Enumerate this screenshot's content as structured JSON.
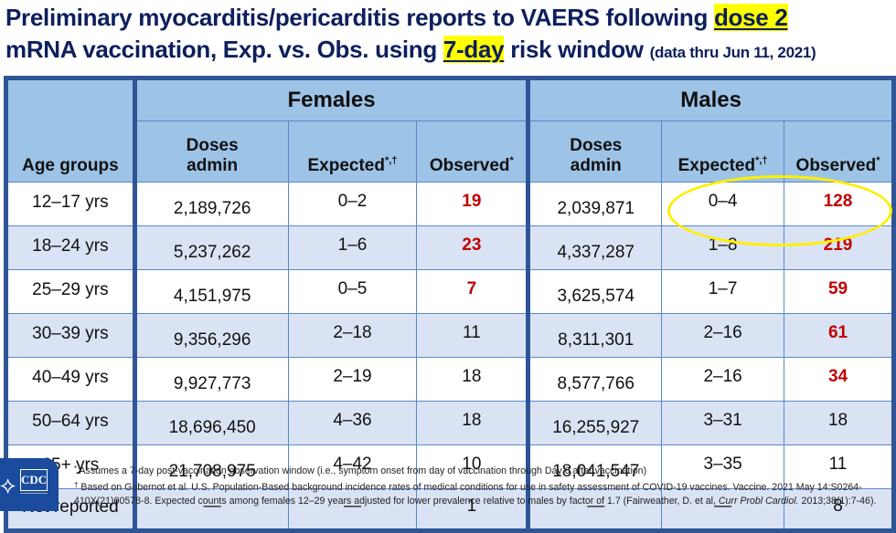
{
  "title": {
    "line1_prefix": "Preliminary myocarditis/pericarditis reports to VAERS following ",
    "line1_highlight": "dose 2",
    "line2_prefix": "mRNA vaccination, Exp. vs. Obs. using ",
    "line2_highlight": "7-day",
    "line2_suffix": " risk window ",
    "line2_note": "(data thru Jun 11, 2021)"
  },
  "colors": {
    "title": "#0d1f5c",
    "header_bg": "#9dc3e6",
    "row_alt_bg": "#dae3f3",
    "thick_border": "#2f5597",
    "highlight": "#ffff00",
    "emphasis_red": "#c00000",
    "circle": "#ffee00"
  },
  "table": {
    "age_header": "Age groups",
    "groups": [
      "Females",
      "Males"
    ],
    "subheaders": {
      "doses": "Doses admin",
      "expected": "Expected",
      "expected_sup": "*,†",
      "observed": "Observed",
      "observed_sup": "*"
    },
    "rows": [
      {
        "age": "12–17 yrs",
        "f_doses": "2,189,726",
        "f_exp": "0–2",
        "f_obs": "19",
        "f_obs_flag": true,
        "m_doses": "2,039,871",
        "m_exp": "0–4",
        "m_obs": "128",
        "m_obs_flag": true
      },
      {
        "age": "18–24 yrs",
        "f_doses": "5,237,262",
        "f_exp": "1–6",
        "f_obs": "23",
        "f_obs_flag": true,
        "m_doses": "4,337,287",
        "m_exp": "1–8",
        "m_obs": "219",
        "m_obs_flag": true
      },
      {
        "age": "25–29 yrs",
        "f_doses": "4,151,975",
        "f_exp": "0–5",
        "f_obs": "7",
        "f_obs_flag": true,
        "m_doses": "3,625,574",
        "m_exp": "1–7",
        "m_obs": "59",
        "m_obs_flag": true
      },
      {
        "age": "30–39 yrs",
        "f_doses": "9,356,296",
        "f_exp": "2–18",
        "f_obs": "11",
        "f_obs_flag": false,
        "m_doses": "8,311,301",
        "m_exp": "2–16",
        "m_obs": "61",
        "m_obs_flag": true
      },
      {
        "age": "40–49 yrs",
        "f_doses": "9,927,773",
        "f_exp": "2–19",
        "f_obs": "18",
        "f_obs_flag": false,
        "m_doses": "8,577,766",
        "m_exp": "2–16",
        "m_obs": "34",
        "m_obs_flag": true
      },
      {
        "age": "50–64 yrs",
        "f_doses": "18,696,450",
        "f_exp": "4–36",
        "f_obs": "18",
        "f_obs_flag": false,
        "m_doses": "16,255,927",
        "m_exp": "3–31",
        "m_obs": "18",
        "m_obs_flag": false
      },
      {
        "age": "65+ yrs",
        "f_doses": "21,708,975",
        "f_exp": "4–42",
        "f_obs": "10",
        "f_obs_flag": false,
        "m_doses": "18,041,547",
        "m_exp": "3–35",
        "m_obs": "11",
        "m_obs_flag": false
      },
      {
        "age": "Not reported",
        "f_doses": "—",
        "f_exp": "—",
        "f_obs": "1",
        "f_obs_flag": false,
        "m_doses": "—",
        "m_exp": "—",
        "m_obs": "8",
        "m_obs_flag": false
      }
    ],
    "annotation": "yellow-ellipse around male 12–24 expected/observed"
  },
  "footer": {
    "logo_text": "CDC",
    "logo_icon": "hhs-eagle-icon",
    "note1_symbol": "*",
    "note1": "Assumes a 7-day post-vaccination observation window (i.e., symptom onset from day of vaccination through Day 6 after vaccination)",
    "note2_symbol": "†",
    "note2_a": "Based on Gubernot et al. U.S. Population-Based background incidence rates of medical conditions for use in safety assessment of COVID-19 vaccines. Vaccine. 2021 May 14:S0264-410X(21)00578-8. Expected counts among females 12–29 years adjusted for lower prevalence relative to males by factor of 1.7 (Fairweather, D. et al, ",
    "note2_italic": "Curr Probl Cardiol.",
    "note2_b": " 2013;38(1):7-46)."
  }
}
